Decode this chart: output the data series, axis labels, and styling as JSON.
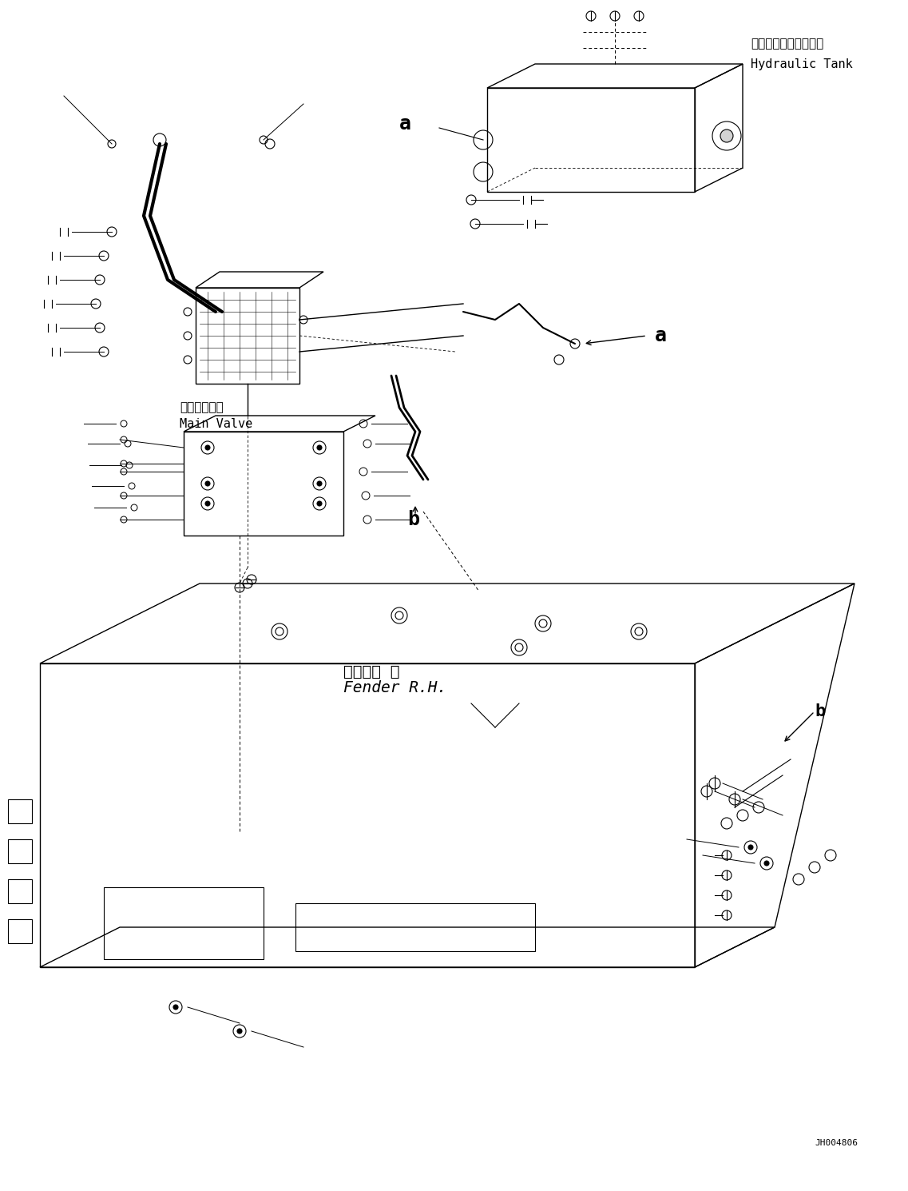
{
  "bg_color": "#ffffff",
  "line_color": "#000000",
  "fig_width": 11.37,
  "fig_height": 14.9,
  "dpi": 100,
  "labels": {
    "hydraulic_tank_jp": "ハイドロリックタンク",
    "hydraulic_tank_en": "Hydraulic Tank",
    "main_valve_jp": "メインバルブ",
    "main_valve_en": "Main Valve",
    "fender_jp": "フェンダ 右",
    "fender_en": "Fender R.H.",
    "label_a": "a",
    "label_b": "b",
    "part_number": "JH004806"
  },
  "font_size_label": 11,
  "font_size_small": 9,
  "font_size_partno": 8
}
